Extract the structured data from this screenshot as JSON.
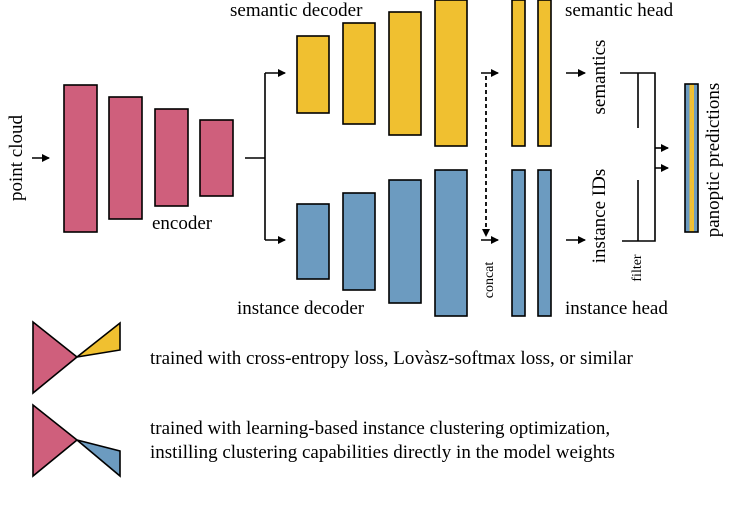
{
  "labels": {
    "point_cloud": "point cloud",
    "encoder": "encoder",
    "semantic_decoder": "semantic decoder",
    "instance_decoder": "instance decoder",
    "semantic_head": "semantic head",
    "instance_head": "instance head",
    "concat": "concat",
    "semantics": "semantics",
    "instance_ids": "instance IDs",
    "filter": "filter",
    "panoptic_predictions": "panoptic predictions"
  },
  "legend": {
    "semantic_text": "trained with cross-entropy loss, Lovàsz-softmax loss, or similar",
    "instance_text_line1": "trained with learning-based instance clustering optimization,",
    "instance_text_line2": "instilling clustering capabilities directly in the model weights"
  },
  "colors": {
    "encoder": "#cf5f7c",
    "semantic": "#f0c030",
    "instance": "#6c9bc0"
  }
}
